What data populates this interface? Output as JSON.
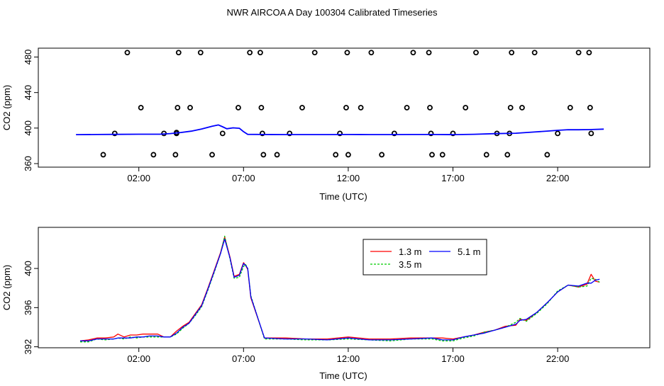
{
  "figure": {
    "title": "NWR AIRCOA A  Day 100304  Calibrated Timeseries"
  },
  "chart_data": [
    {
      "type": "line",
      "panel": "top",
      "title": "",
      "xlabel": "Time (UTC)",
      "ylabel": "CO2 (ppm)",
      "xlim": [
        -2.8,
        26.4
      ],
      "ylim": [
        356,
        490
      ],
      "xticks": [
        2,
        7,
        12,
        17,
        22
      ],
      "xtick_labels": [
        "02:00",
        "07:00",
        "12:00",
        "17:00",
        "22:00"
      ],
      "yticks": [
        360,
        400,
        440,
        480
      ],
      "ytick_labels": [
        "360",
        "400",
        "440",
        "480"
      ],
      "grid": false,
      "colors": {
        "1.3 m": "#ff0000",
        "3.5 m": "#00cd00",
        "5.1 m": "#0000ff",
        "markers": "#000000"
      },
      "series": [
        {
          "name": "5.1 m",
          "x": [
            -1,
            0,
            1,
            2,
            3,
            3.5,
            4,
            4.5,
            5,
            5.5,
            5.8,
            6,
            6.2,
            6.5,
            6.8,
            7.0,
            7.2,
            8,
            9,
            10,
            11,
            12,
            13,
            14,
            15,
            16,
            17,
            18,
            19,
            20,
            20.5,
            21,
            21.5,
            22,
            22.5,
            23,
            23.5,
            24.2
          ],
          "values": [
            392.6,
            392.8,
            392.9,
            393.1,
            393.1,
            393.8,
            395.0,
            396.5,
            399.0,
            402.0,
            403.5,
            401.5,
            399.2,
            400.3,
            399.8,
            396.0,
            392.9,
            392.8,
            392.7,
            392.7,
            392.7,
            392.8,
            392.7,
            392.7,
            392.8,
            392.8,
            392.6,
            393.0,
            393.7,
            394.2,
            395.0,
            395.8,
            396.6,
            397.5,
            398.2,
            398.1,
            398.3,
            398.8
          ]
        }
      ],
      "markers": {
        "name": "circles",
        "x": [
          0.3,
          0.85,
          1.45,
          2.1,
          2.7,
          3.2,
          3.75,
          3.8,
          3.8,
          3.85,
          3.9,
          4.45,
          4.95,
          5.5,
          6.0,
          6.75,
          7.3,
          7.8,
          7.85,
          7.9,
          7.95,
          8.6,
          9.2,
          9.8,
          10.4,
          11.4,
          11.6,
          11.9,
          11.95,
          12.0,
          12.6,
          13.1,
          13.6,
          14.2,
          14.8,
          15.1,
          15.85,
          15.9,
          15.95,
          16.0,
          16.5,
          17.0,
          17.6,
          18.1,
          18.6,
          19.1,
          19.6,
          19.7,
          19.75,
          19.8,
          20.3,
          20.9,
          21.5,
          22.0,
          22.6,
          23.0,
          23.5,
          23.55,
          23.6
        ],
        "values": [
          370,
          394,
          485,
          423,
          370,
          394,
          370,
          394,
          395,
          423,
          485,
          423,
          485,
          370,
          394,
          423,
          485,
          485,
          423,
          394,
          370,
          370,
          394,
          423,
          485,
          370,
          394,
          423,
          485,
          370,
          423,
          485,
          370,
          394,
          423,
          485,
          485,
          423,
          394,
          370,
          370,
          394,
          423,
          485,
          370,
          394,
          370,
          394,
          423,
          485,
          423,
          485,
          370,
          394,
          423,
          485,
          485,
          423,
          394
        ]
      }
    },
    {
      "type": "line",
      "panel": "bottom",
      "title": "",
      "xlabel": "Time (UTC)",
      "ylabel": "CO2 (ppm)",
      "xlim": [
        -2.8,
        26.4
      ],
      "ylim": [
        391.9,
        404.2
      ],
      "xticks": [
        2,
        7,
        12,
        17,
        22
      ],
      "xtick_labels": [
        "02:00",
        "07:00",
        "12:00",
        "17:00",
        "22:00"
      ],
      "yticks": [
        392,
        396,
        400
      ],
      "ytick_labels": [
        "392",
        "396",
        "400"
      ],
      "grid": false,
      "legend": {
        "position": "top-right",
        "entries": [
          "1.3 m",
          "3.5 m",
          "5.1 m"
        ]
      },
      "series": [
        {
          "name": "1.3 m",
          "color": "#ff0000",
          "x": [
            -0.8,
            -0.4,
            0,
            0.4,
            0.8,
            1.0,
            1.3,
            1.6,
            1.9,
            2.2,
            2.5,
            2.9,
            3.2,
            3.5,
            3.8,
            4.1,
            4.4,
            4.7,
            5.0,
            5.3,
            5.6,
            5.9,
            6.1,
            6.35,
            6.55,
            6.8,
            7.0,
            7.1,
            7.2,
            7.35,
            8,
            9,
            10,
            11,
            12,
            13,
            14,
            15,
            16,
            16.5,
            17,
            17.5,
            18,
            18.5,
            19,
            19.5,
            20,
            20.2,
            20.5,
            21,
            21.5,
            22,
            22.5,
            23,
            23.4,
            23.6,
            23.8,
            24
          ],
          "values": [
            392.6,
            392.7,
            392.9,
            392.9,
            393.0,
            393.3,
            393.0,
            393.2,
            393.2,
            393.3,
            393.3,
            393.3,
            393.0,
            393.0,
            393.6,
            394.1,
            394.5,
            395.4,
            396.3,
            398.0,
            399.8,
            401.6,
            403.2,
            401.2,
            399.2,
            399.4,
            400.6,
            400.3,
            399.9,
            397.0,
            392.9,
            392.9,
            392.8,
            392.8,
            393.0,
            392.8,
            392.8,
            392.9,
            392.9,
            392.9,
            392.8,
            393.0,
            393.2,
            393.5,
            393.7,
            394.1,
            394.2,
            394.8,
            394.7,
            395.5,
            396.5,
            397.6,
            398.3,
            398.1,
            398.4,
            399.4,
            398.7,
            398.6
          ]
        },
        {
          "name": "3.5 m",
          "color": "#00cd00",
          "x": [
            -0.8,
            -0.4,
            0,
            0.4,
            0.8,
            1.0,
            1.3,
            1.6,
            1.9,
            2.2,
            2.5,
            2.9,
            3.2,
            3.5,
            3.8,
            4.1,
            4.4,
            4.7,
            5.0,
            5.3,
            5.6,
            5.9,
            6.1,
            6.35,
            6.55,
            6.8,
            7.0,
            7.1,
            7.2,
            7.35,
            8,
            9,
            10,
            11,
            12,
            13,
            14,
            15,
            16,
            16.5,
            17,
            17.5,
            18,
            18.5,
            19,
            19.5,
            20,
            20.2,
            20.5,
            21,
            21.5,
            22,
            22.5,
            23,
            23.4,
            23.6,
            23.8,
            24
          ],
          "values": [
            392.5,
            392.5,
            392.8,
            392.7,
            392.8,
            392.9,
            392.8,
            393.0,
            392.9,
            393.0,
            393.0,
            393.0,
            393.0,
            393.0,
            393.3,
            393.9,
            394.4,
            395.2,
            396.1,
            397.8,
            399.6,
            401.5,
            403.3,
            401.0,
            399.0,
            399.1,
            400.2,
            400.4,
            400.0,
            397.2,
            392.8,
            392.8,
            392.7,
            392.7,
            392.8,
            392.7,
            392.6,
            392.8,
            392.8,
            392.6,
            392.6,
            392.9,
            393.1,
            393.5,
            393.7,
            394.0,
            394.5,
            394.9,
            394.6,
            395.4,
            396.4,
            397.7,
            398.3,
            398.1,
            398.2,
            399.0,
            398.9,
            398.6
          ]
        },
        {
          "name": "5.1 m",
          "color": "#0000ff",
          "x": [
            -0.8,
            -0.4,
            0,
            0.4,
            0.8,
            1.0,
            1.3,
            1.6,
            1.9,
            2.2,
            2.5,
            2.9,
            3.2,
            3.5,
            3.8,
            4.1,
            4.4,
            4.7,
            5.0,
            5.3,
            5.6,
            5.9,
            6.1,
            6.35,
            6.55,
            6.8,
            7.0,
            7.1,
            7.2,
            7.35,
            8,
            9,
            10,
            11,
            12,
            13,
            14,
            15,
            16,
            16.5,
            17,
            17.5,
            18,
            18.5,
            19,
            19.5,
            20,
            20.2,
            20.5,
            21,
            21.5,
            22,
            22.5,
            23,
            23.4,
            23.6,
            23.8,
            24
          ],
          "values": [
            392.6,
            392.6,
            392.8,
            392.8,
            392.8,
            392.9,
            392.9,
            392.9,
            393.0,
            393.0,
            393.1,
            393.1,
            393.0,
            393.0,
            393.4,
            394.0,
            394.4,
            395.3,
            396.2,
            397.9,
            399.7,
            401.5,
            403.0,
            401.1,
            399.1,
            399.3,
            400.5,
            400.3,
            400.0,
            397.1,
            392.9,
            392.8,
            392.8,
            392.7,
            392.9,
            392.7,
            392.7,
            392.8,
            392.9,
            392.7,
            392.7,
            393.0,
            393.2,
            393.4,
            393.7,
            394.0,
            394.3,
            394.7,
            394.8,
            395.5,
            396.5,
            397.6,
            398.3,
            398.2,
            398.5,
            398.5,
            398.8,
            398.9
          ]
        }
      ]
    }
  ]
}
